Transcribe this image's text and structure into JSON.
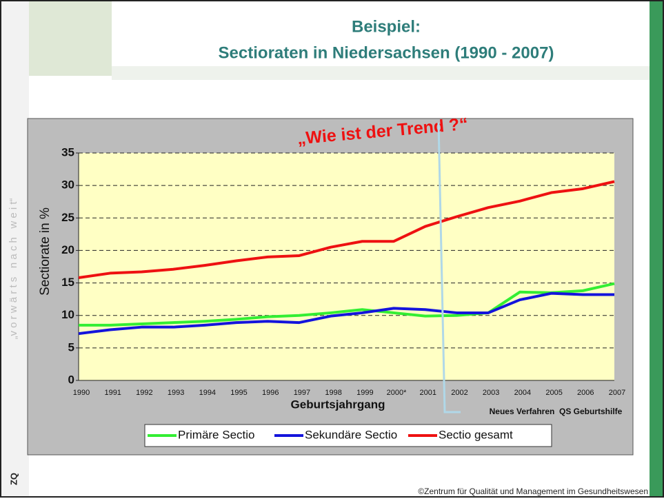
{
  "slide": {
    "title_line1": "Beispiel:",
    "title_line2": "Sectioraten in Niedersachsen  (1990 - 2007)",
    "tagline": "„v o r w ä r t s   n a c h   w e i t“",
    "logo": "ZQ",
    "footer": "©Zentrum für Qualität und Management im Gesundheitswesen"
  },
  "chart_data": {
    "type": "line",
    "annotation": "„Wie ist der Trend ?“",
    "event_label": "Neues Verfahren  QS Geburtshilfe",
    "x_label": "Geburtsjahrgang",
    "y_label": "Sectiorate in %",
    "categories": [
      "1990",
      "1991",
      "1992",
      "1993",
      "1994",
      "1995",
      "1996",
      "1997",
      "1998",
      "1999",
      "2000*",
      "2001",
      "2002",
      "2003",
      "2004",
      "2005",
      "2006",
      "2007"
    ],
    "series": [
      {
        "name": "Primäre Sectio",
        "color": "#33ee33",
        "values": [
          8.5,
          8.5,
          8.7,
          8.9,
          9.1,
          9.4,
          9.8,
          10.0,
          10.4,
          10.9,
          10.4,
          9.9,
          10.0,
          10.4,
          13.6,
          13.5,
          13.8,
          14.9
        ]
      },
      {
        "name": "Sekundäre Sectio",
        "color": "#1414dc",
        "values": [
          7.2,
          7.8,
          8.2,
          8.2,
          8.5,
          8.9,
          9.1,
          8.9,
          9.9,
          10.4,
          11.1,
          10.9,
          10.4,
          10.4,
          12.4,
          13.4,
          13.2,
          13.2
        ]
      },
      {
        "name": "Sectio gesamt",
        "color": "#ee1111",
        "values": [
          15.8,
          16.5,
          16.7,
          17.1,
          17.7,
          18.4,
          19.0,
          19.2,
          20.5,
          21.4,
          21.4,
          23.7,
          25.2,
          26.6,
          27.6,
          28.9,
          29.5,
          30.6
        ]
      }
    ],
    "ylim": [
      0,
      35
    ],
    "yticks": [
      0,
      5,
      10,
      15,
      20,
      25,
      30,
      35
    ],
    "grid": true
  }
}
